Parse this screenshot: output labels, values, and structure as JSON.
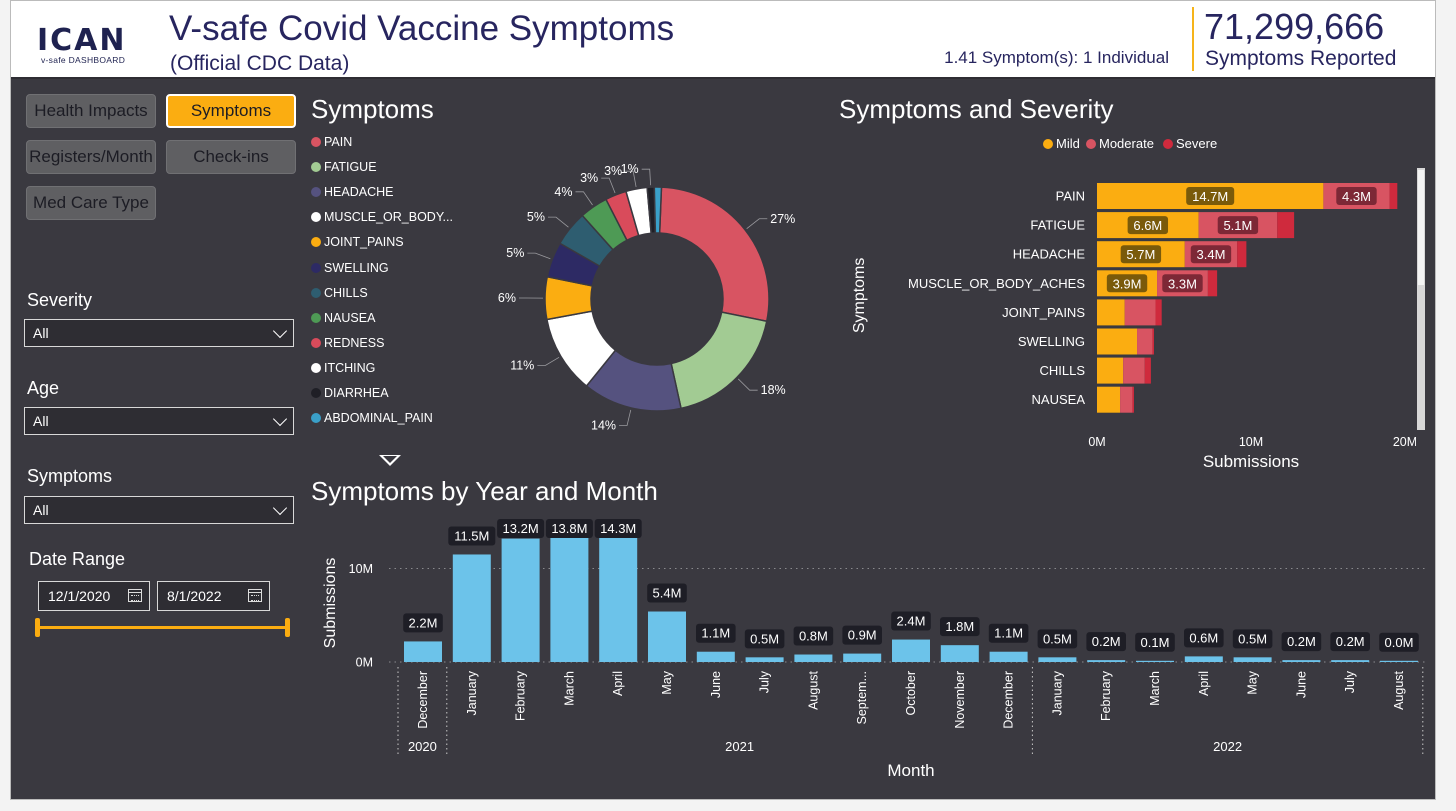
{
  "header": {
    "logo_text": "ICAN",
    "logo_sub": "v-safe DASHBOARD",
    "title": "V-safe Covid Vaccine Symptoms",
    "subtitle": "(Official CDC Data)",
    "ratio_text": "1.41 Symptom(s): 1 Individual",
    "kpi_value": "71,299,666",
    "kpi_label": "Symptoms Reported"
  },
  "nav": {
    "health_impacts": "Health Impacts",
    "symptoms": "Symptoms",
    "registers_month": "Registers/Month",
    "check_ins": "Check-ins",
    "med_care_type": "Med Care Type"
  },
  "filters": {
    "severity_label": "Severity",
    "severity_value": "All",
    "age_label": "Age",
    "age_value": "All",
    "symptoms_label": "Symptoms",
    "symptoms_value": "All",
    "date_range_label": "Date Range",
    "date_start": "12/1/2020",
    "date_end": "8/1/2022"
  },
  "colors": {
    "accent": "#fbad11",
    "bar_blue": "#6cc3ea",
    "mild": "#fbad11",
    "moderate": "#d85462",
    "severe": "#cf2a3d",
    "background": "#3a3940"
  },
  "chart_data": [
    {
      "type": "pie",
      "title": "Symptoms",
      "donut": true,
      "labels": [
        "PAIN",
        "FATIGUE",
        "HEADACHE",
        "MUSCLE_OR_BODY...",
        "JOINT_PAINS",
        "SWELLING",
        "CHILLS",
        "NAUSEA",
        "REDNESS",
        "ITCHING",
        "DIARRHEA",
        "ABDOMINAL_PAIN"
      ],
      "values": [
        27,
        18,
        14,
        11,
        6,
        5,
        5,
        4,
        3,
        3,
        1,
        1
      ],
      "data_labels": [
        "27%",
        "18%",
        "14%",
        "11%",
        "6%",
        "5%",
        "5%",
        "4%",
        "3%",
        "3%",
        "1%",
        ""
      ],
      "colors": [
        "#d85462",
        "#a2cb93",
        "#55527f",
        "#ffffff",
        "#fbad11",
        "#2d2a64",
        "#2e5d70",
        "#4e9a55",
        "#d94b5b",
        "#ffffff",
        "#1f1f26",
        "#3aa0c9"
      ]
    },
    {
      "type": "bar",
      "orientation": "horizontal",
      "stacked": true,
      "title": "Symptoms and Severity",
      "xlabel": "Submissions",
      "ylabel": "Symptoms",
      "xlim": [
        0,
        20000000
      ],
      "x_ticks": [
        "0M",
        "10M",
        "20M"
      ],
      "legend_position": "top",
      "categories": [
        "PAIN",
        "FATIGUE",
        "HEADACHE",
        "MUSCLE_OR_BODY_ACHES",
        "JOINT_PAINS",
        "SWELLING",
        "CHILLS",
        "NAUSEA"
      ],
      "series": [
        {
          "name": "Mild",
          "color": "#fbad11",
          "values": [
            14.7,
            6.6,
            5.7,
            3.9,
            1.8,
            2.6,
            1.7,
            1.5
          ],
          "labels": [
            "14.7M",
            "6.6M",
            "5.7M",
            "3.9M",
            "",
            "",
            "",
            ""
          ]
        },
        {
          "name": "Moderate",
          "color": "#d85462",
          "values": [
            4.3,
            5.1,
            3.4,
            3.3,
            2.0,
            1.0,
            1.4,
            0.8
          ],
          "labels": [
            "4.3M",
            "5.1M",
            "3.4M",
            "3.3M",
            "",
            "",
            "",
            ""
          ]
        },
        {
          "name": "Severe",
          "color": "#cf2a3d",
          "values": [
            0.5,
            1.1,
            0.6,
            0.6,
            0.4,
            0.1,
            0.4,
            0.1
          ],
          "labels": [
            "",
            "",
            "",
            "",
            "",
            "",
            "",
            ""
          ]
        }
      ],
      "units": "M"
    },
    {
      "type": "bar",
      "title": "Symptoms by Year and Month",
      "xlabel": "Month",
      "ylabel": "Submissions",
      "ylim": [
        0,
        14500000
      ],
      "y_ticks": [
        "0M",
        "10M"
      ],
      "categories": [
        "December",
        "January",
        "February",
        "March",
        "April",
        "May",
        "June",
        "July",
        "August",
        "Septem...",
        "October",
        "November",
        "December",
        "January",
        "February",
        "March",
        "April",
        "May",
        "June",
        "July",
        "August"
      ],
      "years": [
        {
          "label": "2020",
          "span": 1
        },
        {
          "label": "2021",
          "span": 12
        },
        {
          "label": "2022",
          "span": 8
        }
      ],
      "values": [
        2.2,
        11.5,
        13.2,
        13.8,
        14.3,
        5.4,
        1.1,
        0.5,
        0.8,
        0.9,
        2.4,
        1.8,
        1.1,
        0.5,
        0.2,
        0.1,
        0.6,
        0.5,
        0.2,
        0.2,
        0.0
      ],
      "data_labels": [
        "2.2M",
        "11.5M",
        "13.2M",
        "13.8M",
        "14.3M",
        "5.4M",
        "1.1M",
        "0.5M",
        "0.8M",
        "0.9M",
        "2.4M",
        "1.8M",
        "1.1M",
        "0.5M",
        "0.2M",
        "0.1M",
        "0.6M",
        "0.5M",
        "0.2M",
        "0.2M",
        "0.0M"
      ],
      "units": "M",
      "color": "#6cc3ea",
      "grid": true
    }
  ]
}
